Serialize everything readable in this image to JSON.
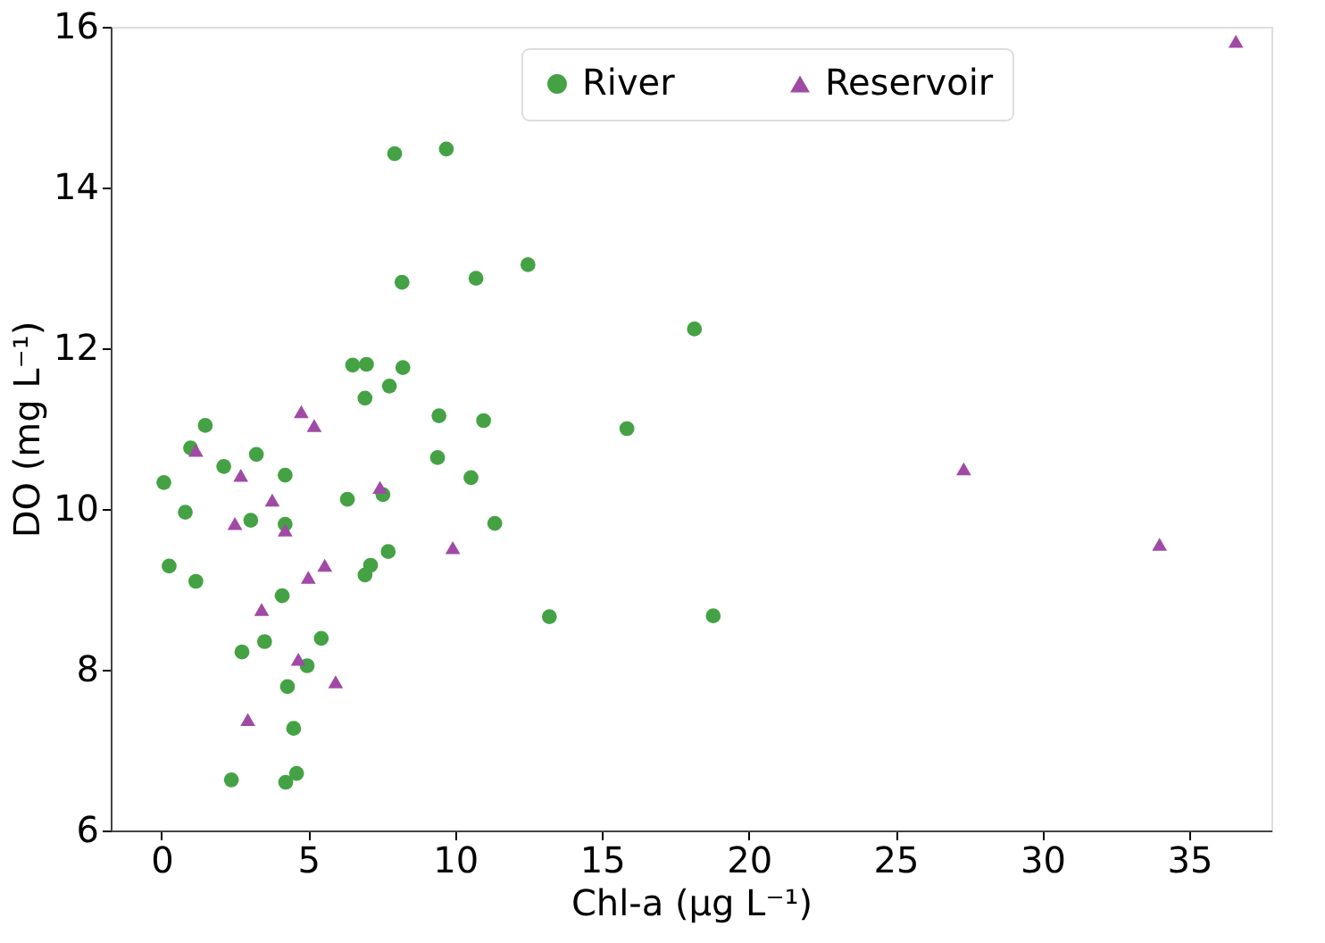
{
  "chart_data": {
    "type": "scatter",
    "xlabel": "Chl-a (μg L⁻¹)",
    "ylabel": "DO (mg L⁻¹)",
    "xlim": [
      -1.73,
      37.8
    ],
    "xticks": [
      0,
      5,
      10,
      15,
      20,
      25,
      30,
      35
    ],
    "ylim": [
      6,
      16
    ],
    "yticks": [
      6,
      8,
      10,
      12,
      14,
      16
    ],
    "grid": false,
    "legend": "top",
    "series": [
      {
        "name": "River",
        "color": "#44a244",
        "marker": "circle",
        "x": [
          1.49,
          0.99,
          2.12,
          3.23,
          0.08,
          4.21,
          0.81,
          3.04,
          4.21,
          6.33,
          7.54,
          6.93,
          9.45,
          10.97,
          9.4,
          10.54,
          11.35,
          0.26,
          1.17,
          7.72,
          7.12,
          6.93,
          4.11,
          13.21,
          3.51,
          5.44,
          2.74,
          4.96,
          4.29,
          4.5,
          2.38,
          4.23,
          4.6,
          7.94,
          9.7,
          8.19,
          10.71,
          12.48,
          6.51,
          6.98,
          8.22,
          7.76,
          18.15,
          15.85,
          18.79
        ],
        "values": [
          11.04,
          10.76,
          10.53,
          10.68,
          10.33,
          10.42,
          9.96,
          9.86,
          9.81,
          10.12,
          10.18,
          11.38,
          11.16,
          11.1,
          10.64,
          10.39,
          9.82,
          9.29,
          9.1,
          9.47,
          9.3,
          9.18,
          8.92,
          8.66,
          8.35,
          8.39,
          8.22,
          8.05,
          7.79,
          7.27,
          6.63,
          6.6,
          6.71,
          14.42,
          14.48,
          12.82,
          12.87,
          13.04,
          11.79,
          11.8,
          11.76,
          11.53,
          12.24,
          11.0,
          8.67
        ]
      },
      {
        "name": "Reservoir",
        "color": "#a04aa6",
        "marker": "triangle",
        "x": [
          4.76,
          5.2,
          1.17,
          2.7,
          3.77,
          7.44,
          2.5,
          4.21,
          9.92,
          5.56,
          5.0,
          3.41,
          4.66,
          5.93,
          2.94,
          36.59,
          27.32,
          33.99
        ],
        "values": [
          11.21,
          11.04,
          10.73,
          10.42,
          10.11,
          10.27,
          9.82,
          9.74,
          9.52,
          9.3,
          9.15,
          8.75,
          8.13,
          7.85,
          7.38,
          15.82,
          10.5,
          9.56
        ]
      }
    ]
  }
}
